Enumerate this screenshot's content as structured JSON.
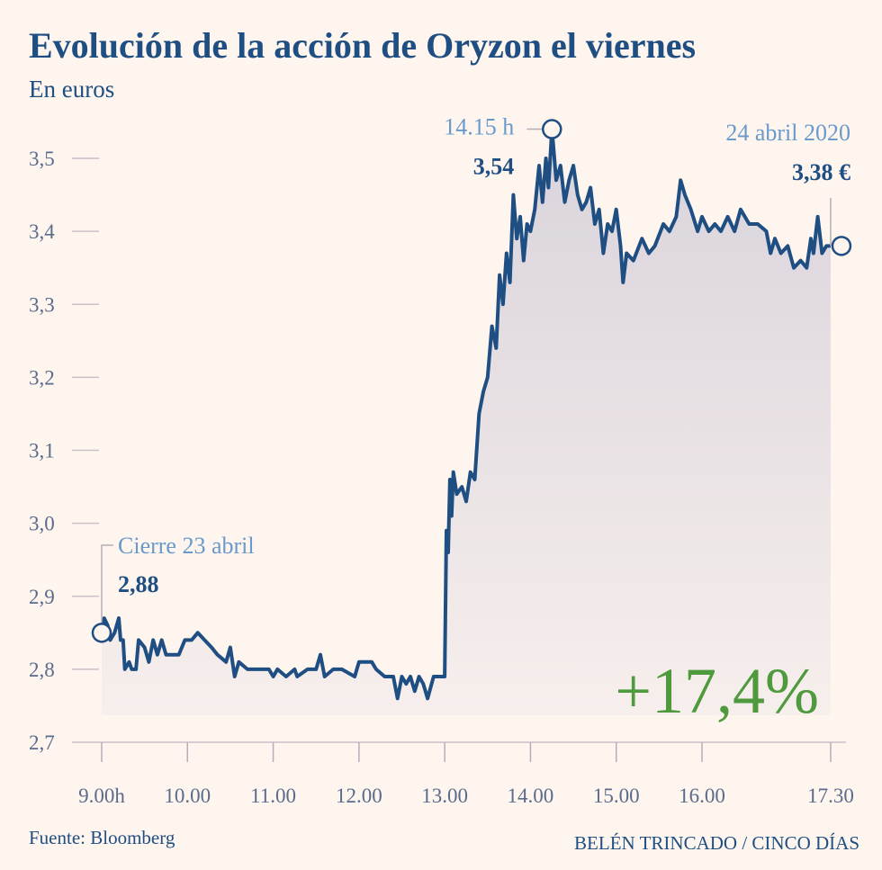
{
  "chart_data": {
    "type": "line",
    "title": "Evolución de la acción de Oryzon el viernes",
    "subtitle": "En euros",
    "source": "Fuente: Bloomberg",
    "credit": "BELÉN TRINCADO / CINCO DÍAS",
    "change": {
      "value": 17.4,
      "label": "+17,4%"
    },
    "xlim": [
      8.7,
      17.7
    ],
    "ylim": [
      2.7,
      3.5
    ],
    "xticks": [
      {
        "value": 9,
        "label": "9.00h"
      },
      {
        "value": 10,
        "label": "10.00"
      },
      {
        "value": 11,
        "label": "11.00"
      },
      {
        "value": 12,
        "label": "12.00"
      },
      {
        "value": 13,
        "label": "13.00"
      },
      {
        "value": 14,
        "label": "14.00"
      },
      {
        "value": 15,
        "label": "15.00"
      },
      {
        "value": 16,
        "label": "16.00"
      },
      {
        "value": 17.5,
        "label": "17.30"
      }
    ],
    "yticks": [
      {
        "value": 2.7,
        "label": "2,7"
      },
      {
        "value": 2.8,
        "label": "2,8"
      },
      {
        "value": 2.9,
        "label": "2,9"
      },
      {
        "value": 3.0,
        "label": "3,0"
      },
      {
        "value": 3.1,
        "label": "3,1"
      },
      {
        "value": 3.2,
        "label": "3,2"
      },
      {
        "value": 3.3,
        "label": "3,3"
      },
      {
        "value": 3.4,
        "label": "3,4"
      },
      {
        "value": 3.5,
        "label": "3,5"
      }
    ],
    "annotations": [
      {
        "text": "Cierre 23 abril",
        "value": 2.88,
        "value_label": "2,88"
      },
      {
        "text": "14.15 h",
        "value": 3.54,
        "value_label": "3,54"
      },
      {
        "text": "24 abril 2020",
        "value": 3.38,
        "value_label": "3,38 €"
      }
    ],
    "series": [
      {
        "color": "#1f4e82",
        "x": [
          9.0,
          9.03,
          9.07,
          9.1,
          9.15,
          9.2,
          9.22,
          9.25,
          9.27,
          9.32,
          9.35,
          9.4,
          9.43,
          9.5,
          9.55,
          9.6,
          9.65,
          9.7,
          9.75,
          9.82,
          9.9,
          9.97,
          10.05,
          10.12,
          10.2,
          10.28,
          10.35,
          10.45,
          10.5,
          10.55,
          10.6,
          10.7,
          10.9,
          10.95,
          11.0,
          11.05,
          11.15,
          11.25,
          11.28,
          11.4,
          11.5,
          11.55,
          11.6,
          11.7,
          11.8,
          11.95,
          12.0,
          12.15,
          12.2,
          12.3,
          12.4,
          12.45,
          12.5,
          12.55,
          12.6,
          12.65,
          12.7,
          12.75,
          12.8,
          12.87,
          12.95,
          13.0,
          13.02,
          13.04,
          13.06,
          13.08,
          13.1,
          13.14,
          13.2,
          13.25,
          13.3,
          13.35,
          13.4,
          13.45,
          13.5,
          13.55,
          13.6,
          13.64,
          13.68,
          13.72,
          13.76,
          13.8,
          13.84,
          13.88,
          13.92,
          13.96,
          14.0,
          14.05,
          14.1,
          14.14,
          14.18,
          14.21,
          14.25,
          14.3,
          14.35,
          14.4,
          14.45,
          14.5,
          14.55,
          14.6,
          14.65,
          14.7,
          14.75,
          14.8,
          14.85,
          14.9,
          14.95,
          15.0,
          15.05,
          15.08,
          15.12,
          15.2,
          15.3,
          15.38,
          15.45,
          15.55,
          15.62,
          15.7,
          15.75,
          15.8,
          15.87,
          15.95,
          16.0,
          16.08,
          16.15,
          16.22,
          16.3,
          16.38,
          16.45,
          16.55,
          16.65,
          16.75,
          16.8,
          16.85,
          16.92,
          17.0,
          17.07,
          17.15,
          17.22,
          17.27,
          17.3,
          17.35,
          17.4,
          17.45,
          17.5
        ],
        "values": [
          2.85,
          2.87,
          2.86,
          2.84,
          2.85,
          2.87,
          2.84,
          2.84,
          2.8,
          2.81,
          2.8,
          2.8,
          2.84,
          2.83,
          2.81,
          2.84,
          2.82,
          2.84,
          2.82,
          2.82,
          2.82,
          2.84,
          2.84,
          2.85,
          2.84,
          2.83,
          2.82,
          2.81,
          2.83,
          2.79,
          2.81,
          2.8,
          2.8,
          2.8,
          2.79,
          2.8,
          2.79,
          2.8,
          2.79,
          2.8,
          2.8,
          2.82,
          2.79,
          2.8,
          2.8,
          2.79,
          2.81,
          2.81,
          2.8,
          2.79,
          2.79,
          2.76,
          2.79,
          2.78,
          2.79,
          2.77,
          2.79,
          2.78,
          2.76,
          2.79,
          2.79,
          2.79,
          2.99,
          2.96,
          3.06,
          3.01,
          3.07,
          3.04,
          3.05,
          3.03,
          3.07,
          3.06,
          3.15,
          3.18,
          3.2,
          3.27,
          3.24,
          3.34,
          3.3,
          3.37,
          3.33,
          3.45,
          3.39,
          3.42,
          3.36,
          3.41,
          3.4,
          3.43,
          3.49,
          3.44,
          3.5,
          3.46,
          3.54,
          3.47,
          3.49,
          3.44,
          3.47,
          3.49,
          3.45,
          3.43,
          3.44,
          3.46,
          3.41,
          3.43,
          3.37,
          3.41,
          3.4,
          3.43,
          3.38,
          3.33,
          3.37,
          3.36,
          3.39,
          3.37,
          3.38,
          3.41,
          3.4,
          3.42,
          3.47,
          3.45,
          3.43,
          3.4,
          3.42,
          3.4,
          3.41,
          3.4,
          3.42,
          3.4,
          3.43,
          3.41,
          3.41,
          3.4,
          3.37,
          3.39,
          3.37,
          3.38,
          3.35,
          3.36,
          3.35,
          3.39,
          3.37,
          3.42,
          3.37,
          3.38,
          3.38
        ]
      }
    ]
  }
}
